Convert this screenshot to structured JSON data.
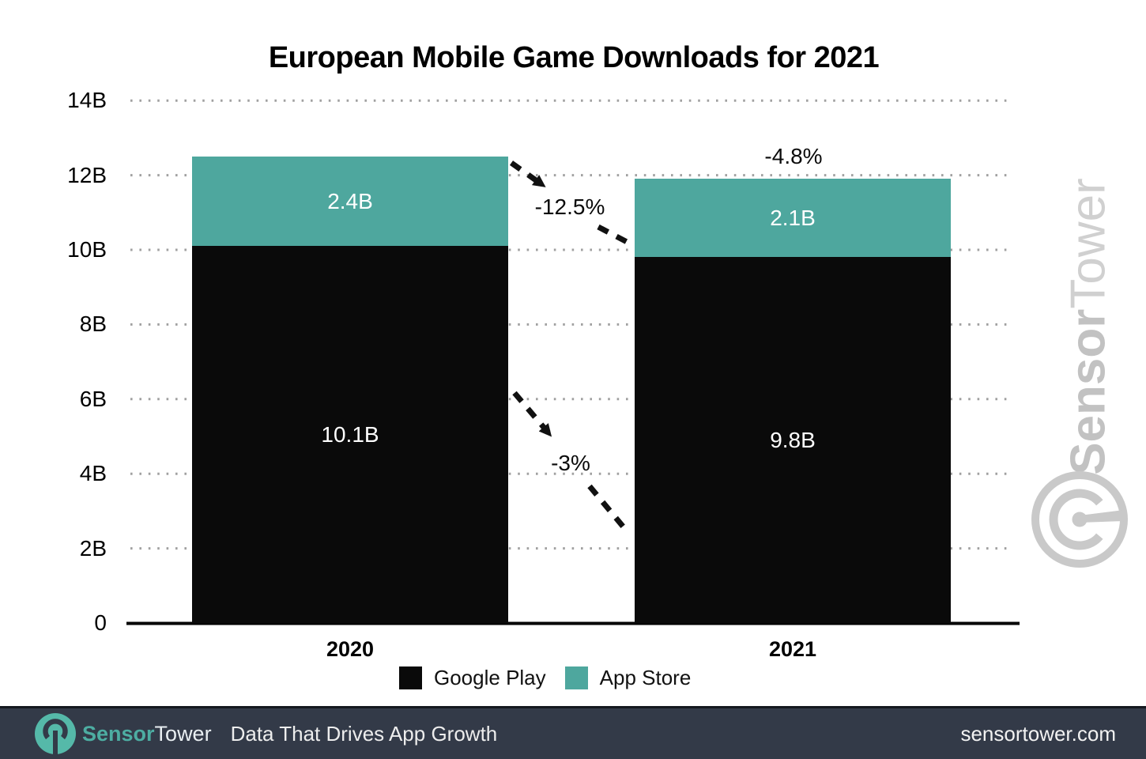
{
  "title": "European Mobile Game Downloads for 2021",
  "chart_data": {
    "type": "bar",
    "stacked": true,
    "categories": [
      "2020",
      "2021"
    ],
    "series": [
      {
        "name": "Google Play",
        "color": "#0a0a0a",
        "values": [
          10.1,
          9.8
        ],
        "value_labels": [
          "10.1B",
          "9.8B"
        ]
      },
      {
        "name": "App Store",
        "color": "#4ea79e",
        "values": [
          2.4,
          2.1
        ],
        "value_labels": [
          "2.4B",
          "2.1B"
        ]
      }
    ],
    "totals_b": [
      12.5,
      11.9
    ],
    "ylim": [
      0,
      14
    ],
    "yticks": [
      {
        "value": 0,
        "label": "0"
      },
      {
        "value": 2,
        "label": "2B"
      },
      {
        "value": 4,
        "label": "4B"
      },
      {
        "value": 6,
        "label": "6B"
      },
      {
        "value": 8,
        "label": "8B"
      },
      {
        "value": 10,
        "label": "10B"
      },
      {
        "value": 12,
        "label": "12B"
      },
      {
        "value": 14,
        "label": "14B"
      }
    ],
    "grid": "horizontal-dotted",
    "legend_position": "bottom",
    "annotations": {
      "app_store_change": "-12.5%",
      "google_play_change": "-3%",
      "total_change": "-4.8%"
    }
  },
  "legend": {
    "items": [
      {
        "label": "Google Play",
        "color": "#0a0a0a"
      },
      {
        "label": "App Store",
        "color": "#4ea79e"
      }
    ]
  },
  "watermark": {
    "text_sensor": "Sensor",
    "text_tower": "Tower"
  },
  "footer": {
    "brand_sensor": "Sensor",
    "brand_tower": "Tower",
    "tagline": "Data That Drives App Growth",
    "website": "sensortower.com"
  },
  "colors": {
    "app_store_teal": "#4ea79e",
    "google_play_black": "#0a0a0a",
    "footer_bg": "#333a48",
    "footer_logo_teal": "#55b9a9",
    "watermark_gray": "#c9c9c9",
    "grid_dot": "#a0a0a0"
  }
}
